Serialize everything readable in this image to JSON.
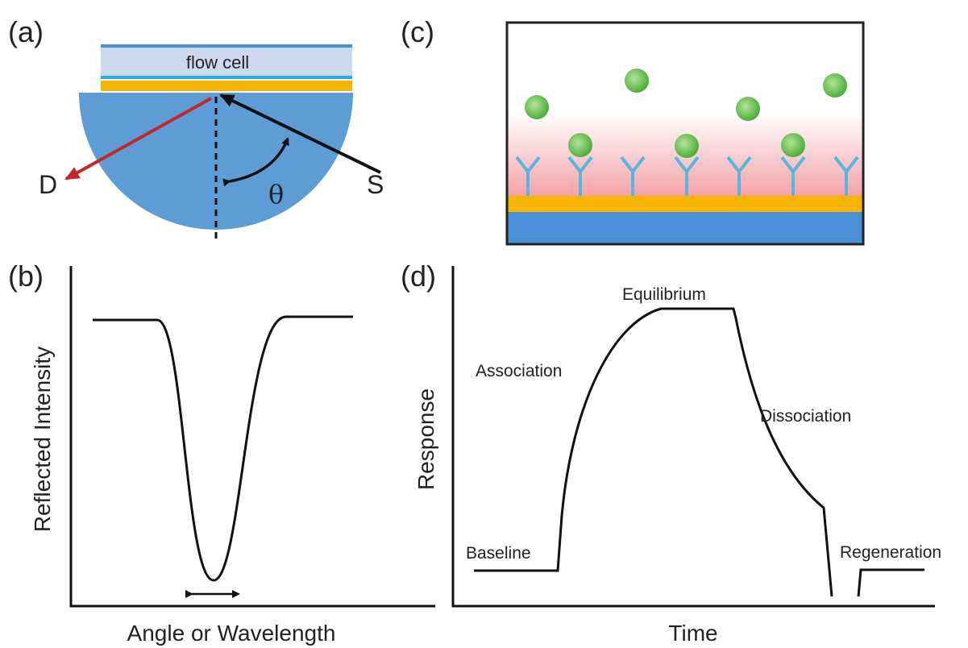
{
  "panels": {
    "a": {
      "label": "(a)",
      "flow_cell": "flow cell",
      "detector": "D",
      "source": "S",
      "angle": "θ"
    },
    "b": {
      "label": "(b)",
      "y_label": "Reflected Intensity",
      "x_label": "Angle or Wavelength"
    },
    "c": {
      "label": "(c)"
    },
    "d": {
      "label": "(d)",
      "y_label": "Response",
      "x_label": "Time",
      "phases": [
        "Baseline",
        "Association",
        "Equilibrium",
        "Dissociation",
        "Regeneration"
      ]
    }
  }
}
